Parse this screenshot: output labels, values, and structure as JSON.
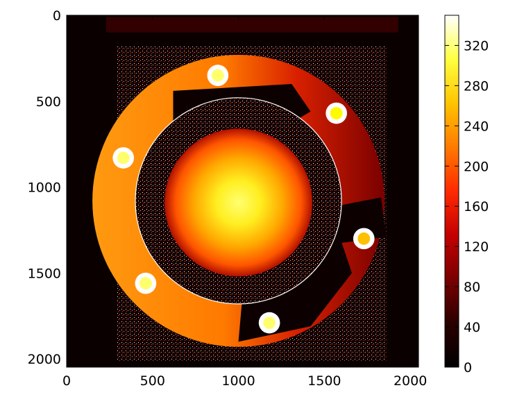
{
  "chart_data": {
    "type": "heatmap",
    "title": "",
    "xlabel": "",
    "ylabel": "",
    "xlim": [
      0,
      2048
    ],
    "ylim": [
      2048,
      0
    ],
    "x_ticks": [
      0,
      500,
      1000,
      1500,
      2000
    ],
    "y_ticks": [
      0,
      500,
      1000,
      1500,
      2000
    ],
    "colormap": "hot",
    "colorbar": {
      "range": [
        0,
        350
      ],
      "ticks": [
        0,
        40,
        80,
        120,
        160,
        200,
        240,
        280,
        320
      ],
      "stops": [
        "#000000",
        "#2a0000",
        "#7a0000",
        "#c40000",
        "#ff2a00",
        "#ff7a00",
        "#ffc400",
        "#ffff40",
        "#ffffff"
      ]
    },
    "features": {
      "center_spot": {
        "x": 1000,
        "y": 1090,
        "radius": 430,
        "value_center": 290,
        "value_edge": 100
      },
      "inner_dark_ring": {
        "x": 1000,
        "y": 1080,
        "radius": 600
      },
      "outer_ring": {
        "x": 1000,
        "y": 1080,
        "radius": 850,
        "value": 200
      },
      "holes": [
        {
          "x": 880,
          "y": 350,
          "value": 300
        },
        {
          "x": 1570,
          "y": 570,
          "value": 260
        },
        {
          "x": 330,
          "y": 830,
          "value": 300
        },
        {
          "x": 1730,
          "y": 1300,
          "value": 230
        },
        {
          "x": 460,
          "y": 1560,
          "value": 300
        },
        {
          "x": 1180,
          "y": 1790,
          "value": 300
        }
      ]
    }
  }
}
